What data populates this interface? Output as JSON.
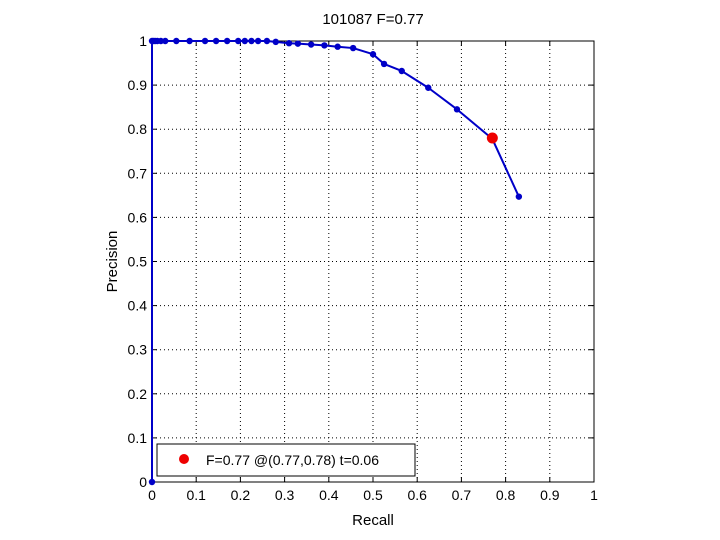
{
  "chart_data": {
    "type": "line",
    "title": "101087 F=0.77",
    "xlabel": "Recall",
    "ylabel": "Precision",
    "xlim": [
      0,
      1
    ],
    "ylim": [
      0,
      1
    ],
    "xticks": [
      "0",
      "0.1",
      "0.2",
      "0.3",
      "0.4",
      "0.5",
      "0.6",
      "0.7",
      "0.8",
      "0.9",
      "1"
    ],
    "yticks": [
      "0",
      "0.1",
      "0.2",
      "0.3",
      "0.4",
      "0.5",
      "0.6",
      "0.7",
      "0.8",
      "0.9",
      "1"
    ],
    "grid": true,
    "series": [
      {
        "color": "#0000c8",
        "points": [
          [
            0,
            0
          ],
          [
            0,
            1
          ],
          [
            0.003,
            1
          ],
          [
            0.007,
            1
          ],
          [
            0.012,
            1
          ],
          [
            0.02,
            1
          ],
          [
            0.03,
            1
          ],
          [
            0.055,
            1
          ],
          [
            0.085,
            1
          ],
          [
            0.12,
            1
          ],
          [
            0.145,
            1
          ],
          [
            0.17,
            1
          ],
          [
            0.195,
            1
          ],
          [
            0.21,
            1
          ],
          [
            0.225,
            1
          ],
          [
            0.24,
            1
          ],
          [
            0.26,
            1
          ],
          [
            0.28,
            0.998
          ],
          [
            0.31,
            0.995
          ],
          [
            0.33,
            0.994
          ],
          [
            0.36,
            0.992
          ],
          [
            0.39,
            0.99
          ],
          [
            0.42,
            0.987
          ],
          [
            0.455,
            0.984
          ],
          [
            0.5,
            0.97
          ],
          [
            0.525,
            0.948
          ],
          [
            0.565,
            0.932
          ],
          [
            0.625,
            0.894
          ],
          [
            0.69,
            0.845
          ],
          [
            0.77,
            0.778
          ],
          [
            0.83,
            0.647
          ]
        ]
      }
    ],
    "highlight": {
      "recall": 0.77,
      "precision": 0.78,
      "color": "#ee0000"
    },
    "legend": {
      "position": "bottom-left",
      "text": "F=0.77 @(0.77,0.78) t=0.06"
    }
  }
}
